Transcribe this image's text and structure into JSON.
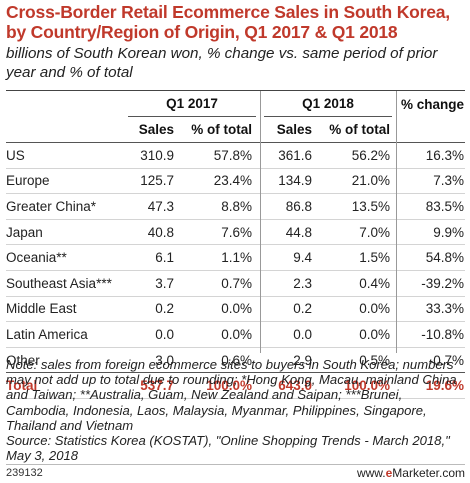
{
  "title": "Cross-Border Retail Ecommerce Sales in South Korea, by Country/Region of Origin, Q1 2017 & Q1 2018",
  "subtitle": "billions of South Korean won, % change vs. same period of prior year and % of total",
  "columns": {
    "q1_2017": "Q1 2017",
    "q1_2018": "Q1 2018",
    "pct_change": "% change",
    "sales": "Sales",
    "pct_total": "% of total"
  },
  "rows": [
    {
      "region": "US",
      "sales_2017": "310.9",
      "pct_2017": "57.8%",
      "sales_2018": "361.6",
      "pct_2018": "56.2%",
      "change": "16.3%"
    },
    {
      "region": "Europe",
      "sales_2017": "125.7",
      "pct_2017": "23.4%",
      "sales_2018": "134.9",
      "pct_2018": "21.0%",
      "change": "7.3%"
    },
    {
      "region": "Greater China*",
      "sales_2017": "47.3",
      "pct_2017": "8.8%",
      "sales_2018": "86.8",
      "pct_2018": "13.5%",
      "change": "83.5%"
    },
    {
      "region": "Japan",
      "sales_2017": "40.8",
      "pct_2017": "7.6%",
      "sales_2018": "44.8",
      "pct_2018": "7.0%",
      "change": "9.9%"
    },
    {
      "region": "Oceania**",
      "sales_2017": "6.1",
      "pct_2017": "1.1%",
      "sales_2018": "9.4",
      "pct_2018": "1.5%",
      "change": "54.8%"
    },
    {
      "region": "Southeast Asia***",
      "sales_2017": "3.7",
      "pct_2017": "0.7%",
      "sales_2018": "2.3",
      "pct_2018": "0.4%",
      "change": "-39.2%"
    },
    {
      "region": "Middle East",
      "sales_2017": "0.2",
      "pct_2017": "0.0%",
      "sales_2018": "0.2",
      "pct_2018": "0.0%",
      "change": "33.3%"
    },
    {
      "region": "Latin America",
      "sales_2017": "0.0",
      "pct_2017": "0.0%",
      "sales_2018": "0.0",
      "pct_2018": "0.0%",
      "change": "-10.8%"
    },
    {
      "region": "Other",
      "sales_2017": "3.0",
      "pct_2017": "0.6%",
      "sales_2018": "2.9",
      "pct_2018": "0.5%",
      "change": "-0.7%"
    }
  ],
  "total": {
    "region": "Total",
    "sales_2017": "537.7",
    "pct_2017": "100.0%",
    "sales_2018": "643.0",
    "pct_2018": "100.0%",
    "change": "19.6%"
  },
  "note": "Note: sales from foreign ecommerce sites to buyers in South Korea; numbers may not add up to total due to rounding; *Hong Kong, Macau, mainland China and Taiwan; **Australia, Guam, New Zealand and Saipan; ***Brunei, Cambodia, Indonesia, Laos, Malaysia, Myanmar, Philippines, Singapore, Thailand and Vietnam",
  "source": "Source: Statistics Korea (KOSTAT), \"Online Shopping Trends - March 2018,\" May 3, 2018",
  "footer": {
    "id": "239132",
    "brand_prefix": "www.",
    "brand_e": "e",
    "brand_suffix": "Marketer",
    "brand_tail": ".com"
  },
  "colors": {
    "accent": "#c0392b",
    "text": "#222222",
    "rule": "#555555"
  },
  "chart_data": {
    "type": "table",
    "title": "Cross-Border Retail Ecommerce Sales in South Korea, by Country/Region of Origin, Q1 2017 & Q1 2018",
    "subtitle": "billions of South Korean won, % change vs. same period of prior year and % of total",
    "columns": [
      "Q1 2017 Sales",
      "Q1 2017 % of total",
      "Q1 2018 Sales",
      "Q1 2018 % of total",
      "% change"
    ],
    "categories": [
      "US",
      "Europe",
      "Greater China*",
      "Japan",
      "Oceania**",
      "Southeast Asia***",
      "Middle East",
      "Latin America",
      "Other",
      "Total"
    ],
    "series": [
      {
        "name": "Q1 2017 Sales",
        "values": [
          310.9,
          125.7,
          47.3,
          40.8,
          6.1,
          3.7,
          0.2,
          0.0,
          3.0,
          537.7
        ]
      },
      {
        "name": "Q1 2017 % of total",
        "values": [
          57.8,
          23.4,
          8.8,
          7.6,
          1.1,
          0.7,
          0.0,
          0.0,
          0.6,
          100.0
        ]
      },
      {
        "name": "Q1 2018 Sales",
        "values": [
          361.6,
          134.9,
          86.8,
          44.8,
          9.4,
          2.3,
          0.2,
          0.0,
          2.9,
          643.0
        ]
      },
      {
        "name": "Q1 2018 % of total",
        "values": [
          56.2,
          21.0,
          13.5,
          7.0,
          1.5,
          0.4,
          0.0,
          0.0,
          0.5,
          100.0
        ]
      },
      {
        "name": "% change",
        "values": [
          16.3,
          7.3,
          83.5,
          9.9,
          54.8,
          -39.2,
          33.3,
          -10.8,
          -0.7,
          19.6
        ]
      }
    ]
  }
}
